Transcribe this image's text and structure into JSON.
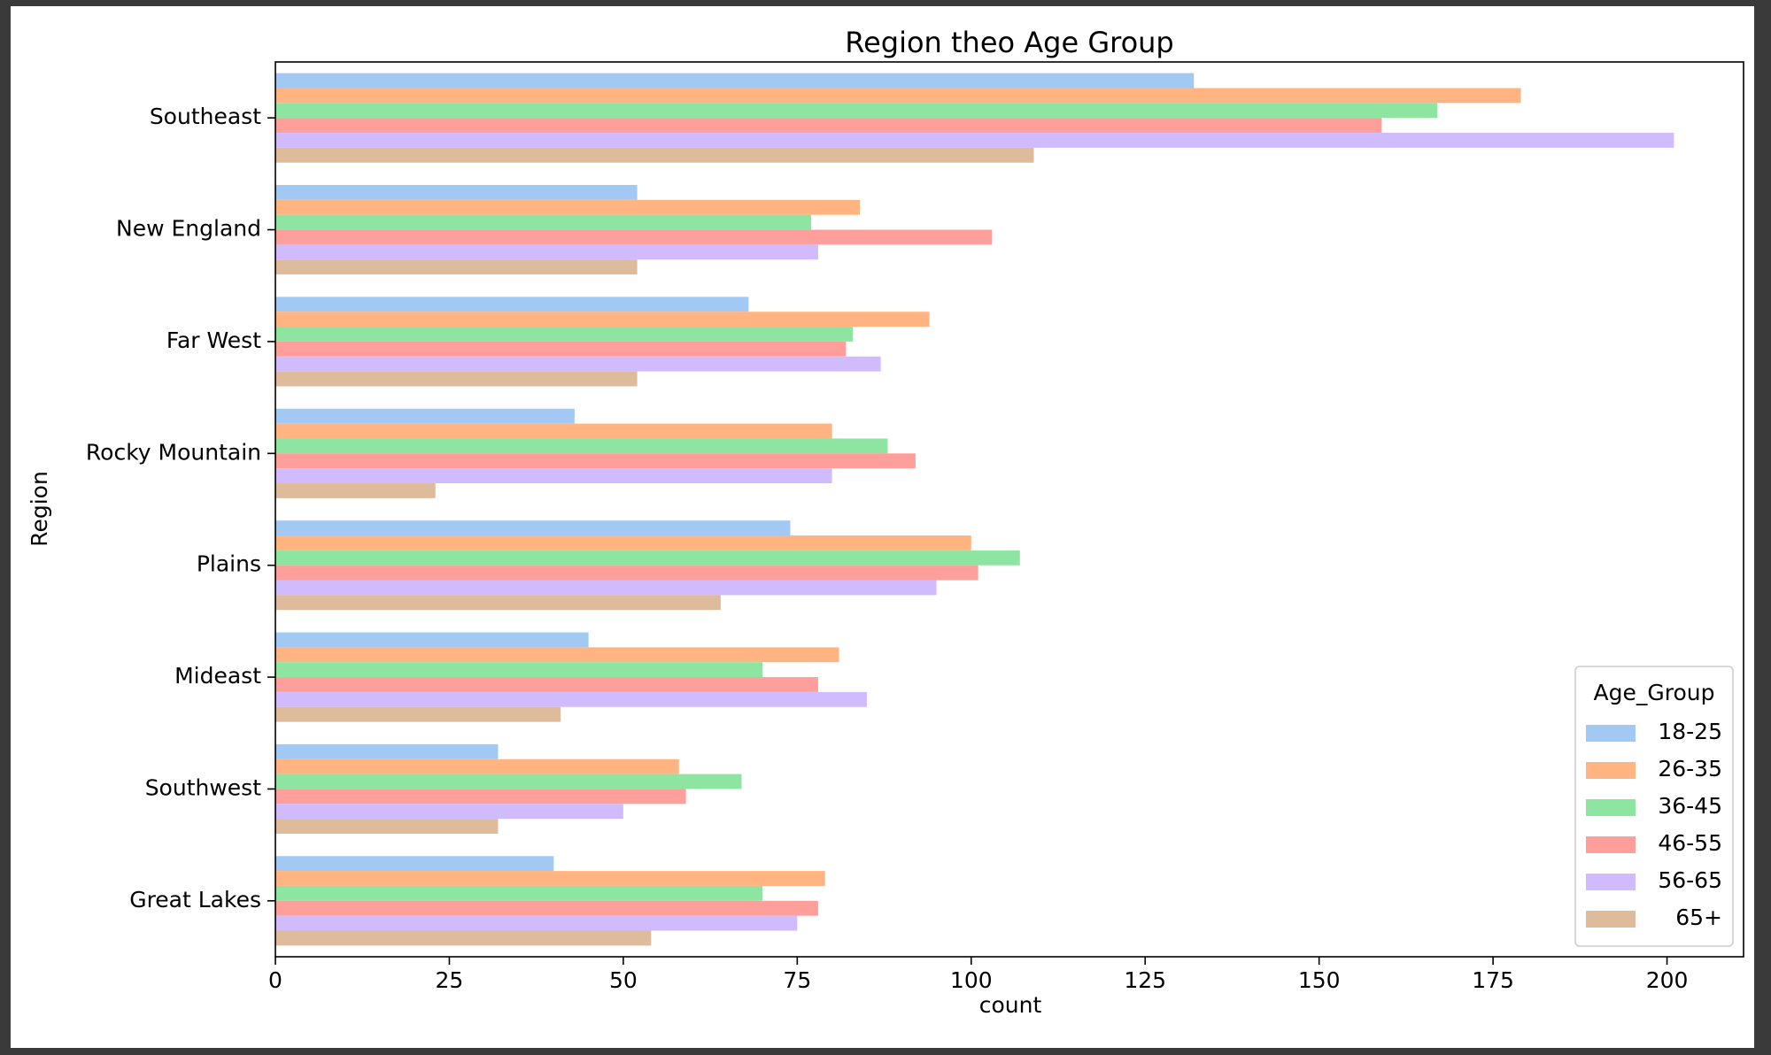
{
  "chart_data": {
    "type": "bar",
    "orientation": "horizontal",
    "title": "Region theo Age Group",
    "xlabel": "count",
    "ylabel": "Region",
    "xlim": [
      0,
      211
    ],
    "xticks": [
      0,
      25,
      50,
      75,
      100,
      125,
      150,
      175,
      200
    ],
    "categories": [
      "Southeast",
      "New England",
      "Far West",
      "Rocky Mountain",
      "Plains",
      "Mideast",
      "Southwest",
      "Great Lakes"
    ],
    "legend": {
      "title": "Age_Group",
      "placement": "lower-right"
    },
    "grid": false,
    "series": [
      {
        "name": "18-25",
        "color": "#a1c9f4",
        "values": [
          132,
          52,
          68,
          43,
          74,
          45,
          32,
          40
        ]
      },
      {
        "name": "26-35",
        "color": "#ffb482",
        "values": [
          179,
          84,
          94,
          80,
          100,
          81,
          58,
          79
        ]
      },
      {
        "name": "36-45",
        "color": "#8de5a1",
        "values": [
          167,
          77,
          83,
          88,
          107,
          70,
          67,
          70
        ]
      },
      {
        "name": "46-55",
        "color": "#ff9f9b",
        "values": [
          159,
          103,
          82,
          92,
          101,
          78,
          59,
          78
        ]
      },
      {
        "name": "56-65",
        "color": "#d0bbff",
        "values": [
          201,
          78,
          87,
          80,
          95,
          85,
          50,
          75
        ]
      },
      {
        "name": "65+",
        "color": "#debb9b",
        "values": [
          109,
          52,
          52,
          23,
          64,
          41,
          32,
          54
        ]
      }
    ]
  }
}
